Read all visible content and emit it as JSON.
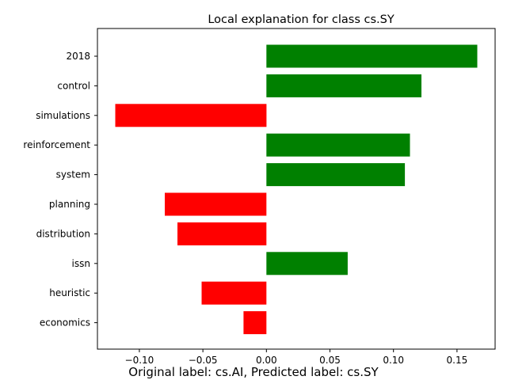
{
  "chart_data": {
    "type": "bar",
    "orientation": "horizontal",
    "title": "Local explanation for class cs.SY",
    "caption": "Original label: cs.AI, Predicted label: cs.SY",
    "xlabel": "",
    "ylabel": "",
    "xlim": [
      -0.133,
      0.18
    ],
    "xticks": [
      -0.1,
      -0.05,
      0.0,
      0.05,
      0.1,
      0.15
    ],
    "xtick_labels": [
      "−0.10",
      "−0.05",
      "0.00",
      "0.05",
      "0.10",
      "0.15"
    ],
    "grid": false,
    "categories": [
      "2018",
      "control",
      "simulations",
      "reinforcement",
      "system",
      "planning",
      "distribution",
      "issn",
      "heuristic",
      "economics"
    ],
    "values": [
      0.166,
      0.122,
      -0.119,
      0.113,
      0.109,
      -0.08,
      -0.07,
      0.064,
      -0.051,
      -0.018
    ],
    "colors": {
      "positive": "#008000",
      "negative": "#ff0000"
    }
  }
}
